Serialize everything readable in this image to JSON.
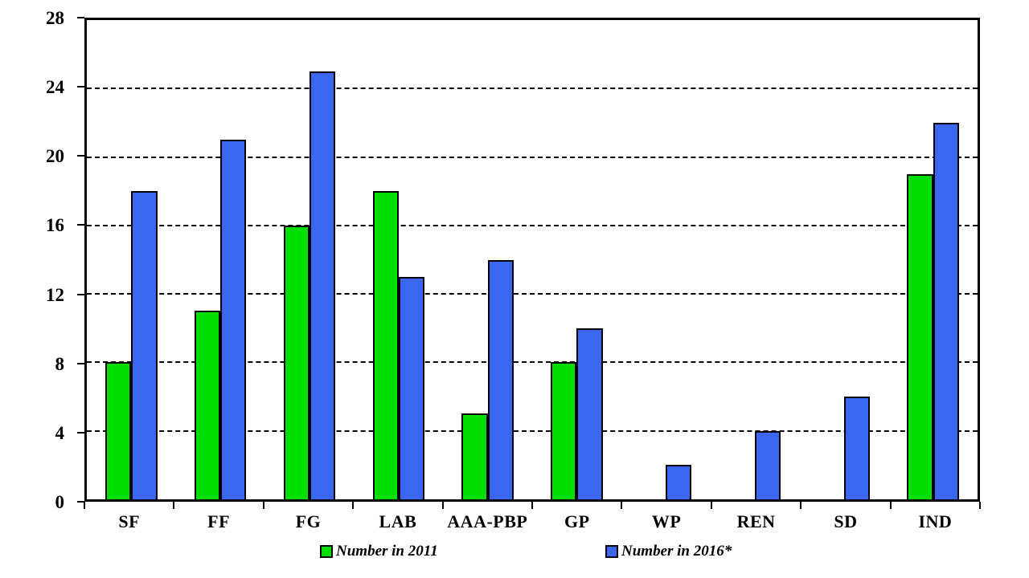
{
  "chart_data": {
    "type": "bar",
    "title": "",
    "xlabel": "",
    "ylabel": "",
    "categories": [
      "SF",
      "FF",
      "FG",
      "LAB",
      "AAA-PBP",
      "GP",
      "WP",
      "REN",
      "SD",
      "IND"
    ],
    "series": [
      {
        "name": "Number in 2011",
        "color": "#00DD00",
        "values": [
          8,
          11,
          16,
          18,
          5,
          8,
          0,
          0,
          0,
          19
        ]
      },
      {
        "name": "Number in 2016*",
        "color": "#3B67F0",
        "values": [
          18,
          21,
          25,
          13,
          14,
          10,
          2,
          4,
          6,
          22
        ]
      }
    ],
    "ylim": [
      0,
      28
    ],
    "yticks": [
      0,
      4,
      8,
      12,
      16,
      20,
      24,
      28
    ],
    "grid": "horizontal-dashed",
    "legend_position": "bottom",
    "bar_border_color": "#000000",
    "axis_color": "#000000"
  },
  "legend": {
    "item_2011": "Number in 2011",
    "item_2016": "Number in 2016*"
  }
}
